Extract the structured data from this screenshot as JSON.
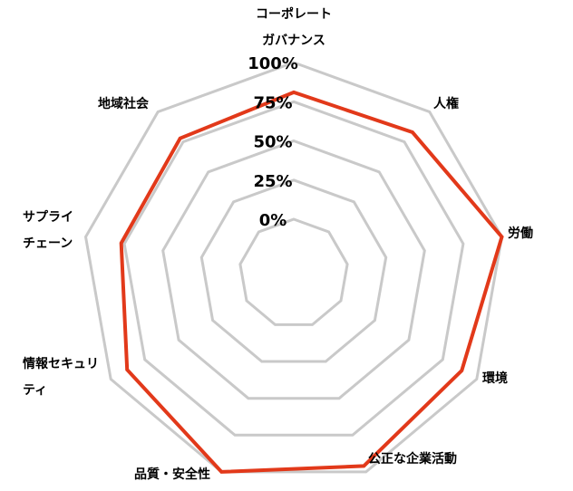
{
  "chart_data": {
    "type": "radar",
    "categories": [
      [
        "コーポレート",
        "ガバナンス"
      ],
      [
        "人権"
      ],
      [
        "労働"
      ],
      [
        "環境"
      ],
      [
        "公正な企業活動"
      ],
      [
        "品質・安全性"
      ],
      [
        "情報セキュリ",
        "ティ"
      ],
      [
        "サプライ",
        "チェーン"
      ],
      [
        "地域社会"
      ]
    ],
    "series": [
      {
        "values": [
          81,
          83,
          100,
          89,
          96,
          100,
          88,
          77,
          78
        ]
      }
    ],
    "ticks": [
      "0%",
      "25%",
      "50%",
      "75%",
      "100%"
    ],
    "tick_values": [
      0,
      25,
      50,
      75,
      100
    ],
    "range": [
      0,
      100
    ],
    "grid": true,
    "colors": {
      "series": "#e2391a",
      "grid": "#c9c9c9"
    }
  }
}
